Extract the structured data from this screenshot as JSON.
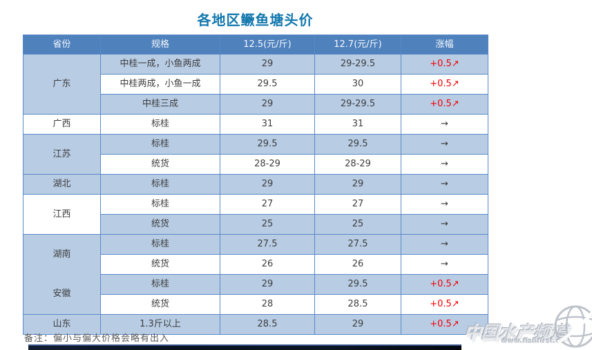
{
  "page": {
    "title": "各地区鳜鱼塘头价",
    "note": "备注：偏小与偏大价格会略有出入"
  },
  "colors": {
    "header_bg": "#4f81bd",
    "band_blue": "#b8cce4",
    "border_color": "#5988c8",
    "title_color": "#1277ad",
    "up_red": "#f30000",
    "text_color": "#3d3d3d",
    "note_color": "#595959",
    "bar_top": "#33518a"
  },
  "table": {
    "headers": [
      "省份",
      "规格",
      "12.5(元/斤)",
      "12.7(元/斤)",
      "涨幅"
    ],
    "groups": [
      {
        "province": "广东",
        "shade": "blue",
        "rows": [
          {
            "spec": "中桂一成，小鱼两成",
            "p125": "29",
            "p127": "29-29.5",
            "change": "+0.5↗",
            "trend": "up",
            "shade": "blue"
          },
          {
            "spec": "中桂两成，小鱼一成",
            "p125": "29.5",
            "p127": "30",
            "change": "+0.5↗",
            "trend": "up",
            "shade": "white"
          },
          {
            "spec": "中桂三成",
            "p125": "29",
            "p127": "29-29.5",
            "change": "+0.5↗",
            "trend": "up",
            "shade": "blue"
          }
        ]
      },
      {
        "province": "广西",
        "shade": "white",
        "rows": [
          {
            "spec": "标桂",
            "p125": "31",
            "p127": "31",
            "change": "→",
            "trend": "flat",
            "shade": "white"
          }
        ]
      },
      {
        "province": "江苏",
        "shade": "blue",
        "rows": [
          {
            "spec": "标桂",
            "p125": "29.5",
            "p127": "29.5",
            "change": "→",
            "trend": "flat",
            "shade": "blue"
          },
          {
            "spec": "统货",
            "p125": "28-29",
            "p127": "28-29",
            "change": "→",
            "trend": "flat",
            "shade": "white"
          }
        ]
      },
      {
        "province": "湖北",
        "shade": "blue",
        "rows": [
          {
            "spec": "标桂",
            "p125": "29",
            "p127": "29",
            "change": "→",
            "trend": "flat",
            "shade": "blue"
          }
        ]
      },
      {
        "province": "江西",
        "shade": "white",
        "rows": [
          {
            "spec": "标桂",
            "p125": "27",
            "p127": "27",
            "change": "→",
            "trend": "flat",
            "shade": "white"
          },
          {
            "spec": "统货",
            "p125": "25",
            "p127": "25",
            "change": "→",
            "trend": "flat",
            "shade": "blue"
          }
        ]
      },
      {
        "province": "湖南",
        "shade": "blue",
        "rows": [
          {
            "spec": "标桂",
            "p125": "27.5",
            "p127": "27.5",
            "change": "→",
            "trend": "flat",
            "shade": "blue"
          },
          {
            "spec": "统货",
            "p125": "26",
            "p127": "26",
            "change": "→",
            "trend": "flat",
            "shade": "white"
          }
        ]
      },
      {
        "province": "安徽",
        "shade": "blue",
        "noTopBorder": true,
        "rows": [
          {
            "spec": "标桂",
            "p125": "29",
            "p127": "29.5",
            "change": "+0.5↗",
            "trend": "up",
            "shade": "blue"
          },
          {
            "spec": "统货",
            "p125": "28",
            "p127": "28.5",
            "change": "+0.5↗",
            "trend": "up",
            "shade": "white"
          }
        ]
      },
      {
        "province": "山东",
        "shade": "blue",
        "rows": [
          {
            "spec": "1.3斤以上",
            "p125": "28.5",
            "p127": "29",
            "change": "+0.5↗",
            "trend": "up",
            "shade": "blue"
          }
        ]
      }
    ]
  },
  "chart_data": {
    "type": "table",
    "title": "各地区鳜鱼塘头价",
    "columns": [
      "省份",
      "规格",
      "12.5(元/斤)",
      "12.7(元/斤)",
      "涨幅"
    ],
    "rows": [
      [
        "广东",
        "中桂一成，小鱼两成",
        "29",
        "29-29.5",
        "+0.5↗"
      ],
      [
        "广东",
        "中桂两成，小鱼一成",
        "29.5",
        "30",
        "+0.5↗"
      ],
      [
        "广东",
        "中桂三成",
        "29",
        "29-29.5",
        "+0.5↗"
      ],
      [
        "广西",
        "标桂",
        "31",
        "31",
        "→"
      ],
      [
        "江苏",
        "标桂",
        "29.5",
        "29.5",
        "→"
      ],
      [
        "江苏",
        "统货",
        "28-29",
        "28-29",
        "→"
      ],
      [
        "湖北",
        "标桂",
        "29",
        "29",
        "→"
      ],
      [
        "江西",
        "标桂",
        "27",
        "27",
        "→"
      ],
      [
        "江西",
        "统货",
        "25",
        "25",
        "→"
      ],
      [
        "湖南",
        "标桂",
        "27.5",
        "27.5",
        "→"
      ],
      [
        "湖南",
        "统货",
        "26",
        "26",
        "→"
      ],
      [
        "安徽",
        "标桂",
        "29",
        "29.5",
        "+0.5↗"
      ],
      [
        "安徽",
        "统货",
        "28",
        "28.5",
        "+0.5↗"
      ],
      [
        "山东",
        "1.3斤以上",
        "28.5",
        "29",
        "+0.5↗"
      ]
    ],
    "note": "备注：偏小与偏大价格会略有出入"
  },
  "watermark": {
    "brand": "中国水产频道",
    "url": "www.fishfirst.cn",
    "icon": "globe-icon"
  }
}
